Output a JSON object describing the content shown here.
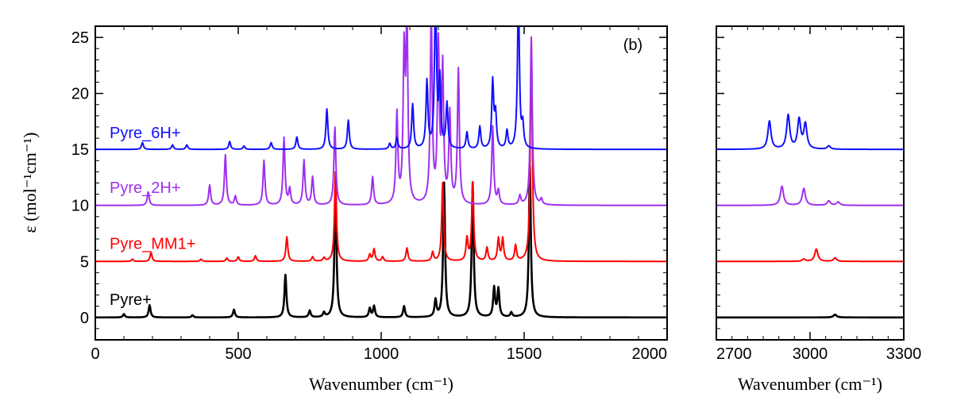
{
  "chart_data": {
    "type": "line",
    "panel_label": "(b)",
    "ylabel": "ε (mol⁻¹cm⁻¹)",
    "ylim": [
      -2,
      26
    ],
    "yticks": [
      0,
      5,
      10,
      15,
      20,
      25
    ],
    "panels": [
      {
        "id": "low",
        "xlabel": "Wavenumber (cm⁻¹)",
        "xlim": [
          0,
          2000
        ],
        "xticks": [
          0,
          500,
          1000,
          1500,
          2000
        ]
      },
      {
        "id": "high",
        "xlabel": "Wavenumber (cm⁻¹)",
        "xlim": [
          2700,
          3300
        ],
        "xticks": [
          2700,
          3000,
          3300
        ]
      }
    ],
    "series": [
      {
        "name": "Pyre+",
        "color": "#000000",
        "offset": 0,
        "peaks": [
          [
            100,
            0.3
          ],
          [
            190,
            1.1
          ],
          [
            340,
            0.2
          ],
          [
            485,
            0.7
          ],
          [
            665,
            3.8
          ],
          [
            750,
            0.6
          ],
          [
            800,
            0.4
          ],
          [
            840,
            12.0
          ],
          [
            960,
            0.8
          ],
          [
            975,
            1.0
          ],
          [
            1080,
            1.0
          ],
          [
            1190,
            1.5
          ],
          [
            1220,
            12.0
          ],
          [
            1320,
            12.0
          ],
          [
            1395,
            2.6
          ],
          [
            1410,
            2.5
          ],
          [
            1455,
            0.4
          ],
          [
            1520,
            13.5
          ],
          [
            3080,
            0.25
          ]
        ]
      },
      {
        "name": "Pyre_MM1+",
        "color": "#ff0000",
        "offset": 5,
        "peaks": [
          [
            130,
            0.2
          ],
          [
            195,
            0.8
          ],
          [
            370,
            0.2
          ],
          [
            460,
            0.3
          ],
          [
            500,
            0.4
          ],
          [
            560,
            0.5
          ],
          [
            670,
            2.2
          ],
          [
            760,
            0.4
          ],
          [
            800,
            0.3
          ],
          [
            840,
            8.0
          ],
          [
            960,
            0.6
          ],
          [
            975,
            1.1
          ],
          [
            1005,
            0.4
          ],
          [
            1090,
            1.2
          ],
          [
            1180,
            0.8
          ],
          [
            1215,
            7.0
          ],
          [
            1300,
            2.0
          ],
          [
            1320,
            7.0
          ],
          [
            1370,
            1.2
          ],
          [
            1410,
            2.0
          ],
          [
            1425,
            2.0
          ],
          [
            1470,
            1.4
          ],
          [
            1525,
            20.0
          ],
          [
            2980,
            0.2
          ],
          [
            3020,
            1.1
          ],
          [
            3080,
            0.3
          ]
        ]
      },
      {
        "name": "Pyre_2H+",
        "color": "#a030f0",
        "offset": 10,
        "peaks": [
          [
            185,
            1.2
          ],
          [
            400,
            1.8
          ],
          [
            455,
            4.5
          ],
          [
            490,
            0.8
          ],
          [
            590,
            4.0
          ],
          [
            660,
            6.0
          ],
          [
            680,
            1.4
          ],
          [
            730,
            4.0
          ],
          [
            760,
            2.5
          ],
          [
            838,
            7.0
          ],
          [
            970,
            2.5
          ],
          [
            1055,
            8.0
          ],
          [
            1080,
            13.0
          ],
          [
            1090,
            16.0
          ],
          [
            1175,
            17.0
          ],
          [
            1200,
            14.0
          ],
          [
            1215,
            12.0
          ],
          [
            1240,
            8.0
          ],
          [
            1270,
            12.0
          ],
          [
            1390,
            7.0
          ],
          [
            1410,
            1.2
          ],
          [
            1485,
            0.8
          ],
          [
            1525,
            15.0
          ],
          [
            1560,
            0.5
          ],
          [
            2910,
            1.7
          ],
          [
            2980,
            1.5
          ],
          [
            3060,
            0.4
          ],
          [
            3090,
            0.3
          ]
        ]
      },
      {
        "name": "Pyre_6H+",
        "color": "#1010ff",
        "offset": 15,
        "peaks": [
          [
            165,
            0.6
          ],
          [
            270,
            0.4
          ],
          [
            320,
            0.4
          ],
          [
            470,
            0.7
          ],
          [
            520,
            0.3
          ],
          [
            615,
            0.6
          ],
          [
            705,
            1.1
          ],
          [
            810,
            3.6
          ],
          [
            885,
            2.6
          ],
          [
            1030,
            0.5
          ],
          [
            1055,
            1.0
          ],
          [
            1110,
            4.0
          ],
          [
            1160,
            6.0
          ],
          [
            1190,
            14.0
          ],
          [
            1205,
            6.0
          ],
          [
            1230,
            4.0
          ],
          [
            1300,
            1.5
          ],
          [
            1345,
            2.0
          ],
          [
            1390,
            6.0
          ],
          [
            1400,
            3.0
          ],
          [
            1440,
            1.6
          ],
          [
            1480,
            14.0
          ],
          [
            1495,
            2.0
          ],
          [
            2870,
            2.5
          ],
          [
            2930,
            3.0
          ],
          [
            2965,
            2.6
          ],
          [
            2985,
            2.2
          ],
          [
            3060,
            0.3
          ]
        ]
      }
    ],
    "legend": [
      {
        "name": "Pyre_6H+",
        "color": "#1010ff",
        "y": 16.5
      },
      {
        "name": "Pyre_2H+",
        "color": "#a030f0",
        "y": 11.6
      },
      {
        "name": "Pyre_MM1+",
        "color": "#ff0000",
        "y": 6.6
      },
      {
        "name": "Pyre+",
        "color": "#000000",
        "y": 1.6
      }
    ]
  }
}
